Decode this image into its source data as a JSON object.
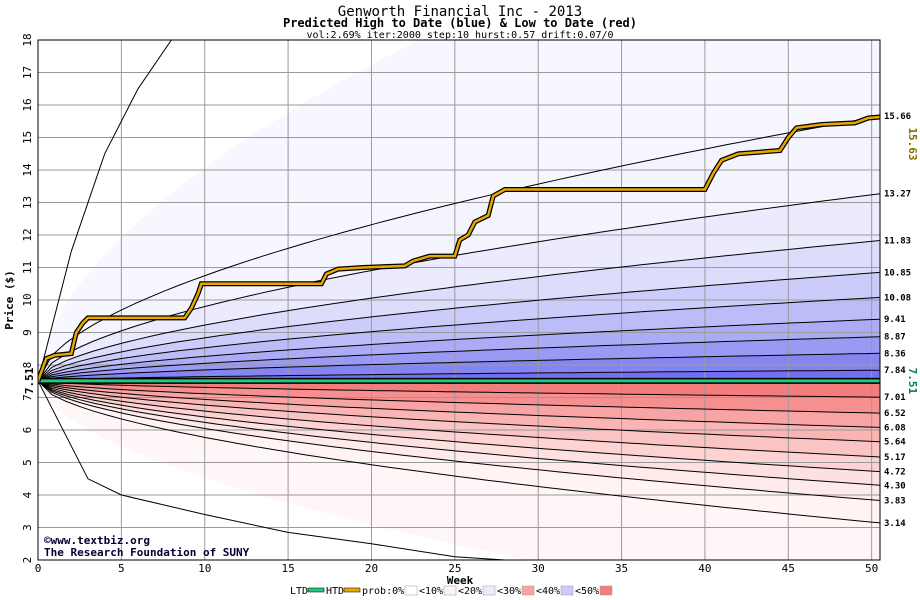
{
  "chart_data": {
    "type": "area",
    "title": "Genworth Financial Inc - 2013",
    "subtitle": "Predicted High to Date (blue) &  Low to Date (red)",
    "params": "vol:2.69% iter:2000 step:10 hurst:0.57 drift:0.07/0",
    "xlabel": "Week",
    "ylabel": "Price ($)",
    "xlim": [
      0,
      50.5
    ],
    "ylim": [
      2,
      18
    ],
    "xticks": [
      0,
      5,
      10,
      15,
      20,
      25,
      30,
      35,
      40,
      45,
      50
    ],
    "yticks": [
      2,
      3,
      4,
      5,
      6,
      7,
      8,
      9,
      10,
      11,
      12,
      13,
      14,
      15,
      16,
      17,
      18
    ],
    "start_price": 7.51,
    "start_label": "7.51",
    "ltd_label": "7.51",
    "htd_label": "15.63",
    "high_bands": [
      {
        "end": 7.84,
        "label": "7.84",
        "color": "#7070f0"
      },
      {
        "end": 8.36,
        "label": "8.36",
        "color": "#8585f2"
      },
      {
        "end": 8.87,
        "label": "8.87",
        "color": "#9a9af4"
      },
      {
        "end": 9.41,
        "label": "9.41",
        "color": "#acacf6"
      },
      {
        "end": 10.08,
        "label": "10.08",
        "color": "#bcbcf8"
      },
      {
        "end": 10.85,
        "label": "10.85",
        "color": "#ccccfa"
      },
      {
        "end": 11.83,
        "label": "11.83",
        "color": "#dcdcfb"
      },
      {
        "end": 13.27,
        "label": "13.27",
        "color": "#ebebfd"
      },
      {
        "end": 15.66,
        "label": "15.66",
        "color": "#f4f4fe"
      }
    ],
    "high_outer_end": 24,
    "low_bands": [
      {
        "end": 7.01,
        "label": "7.01",
        "color": "#f47c7c"
      },
      {
        "end": 6.52,
        "label": "6.52",
        "color": "#f69090"
      },
      {
        "end": 6.08,
        "label": "6.08",
        "color": "#f8a4a4"
      },
      {
        "end": 5.64,
        "label": "5.64",
        "color": "#fab4b4"
      },
      {
        "end": 5.17,
        "label": "5.17",
        "color": "#fbc4c4"
      },
      {
        "end": 4.72,
        "label": "4.72",
        "color": "#fcd2d2"
      },
      {
        "end": 4.3,
        "label": "4.30",
        "color": "#fde0e0"
      },
      {
        "end": 3.83,
        "label": "3.83",
        "color": "#feeaea"
      },
      {
        "end": 3.14,
        "label": "3.14",
        "color": "#fff3f3"
      }
    ],
    "low_outer": [
      [
        0,
        7.51
      ],
      [
        3,
        4.5
      ],
      [
        5,
        4.0
      ],
      [
        10,
        3.4
      ],
      [
        15,
        2.85
      ],
      [
        20,
        2.5
      ],
      [
        25,
        2.1
      ],
      [
        28,
        2.0
      ]
    ],
    "high_outer": [
      [
        0,
        7.51
      ],
      [
        2,
        11.5
      ],
      [
        4,
        14.5
      ],
      [
        6,
        16.5
      ],
      [
        8,
        18.0
      ]
    ],
    "htd_series": [
      [
        0,
        7.51
      ],
      [
        0.5,
        8.2
      ],
      [
        1,
        8.3
      ],
      [
        2,
        8.35
      ],
      [
        2.3,
        9.0
      ],
      [
        2.7,
        9.3
      ],
      [
        3,
        9.45
      ],
      [
        4,
        9.45
      ],
      [
        5,
        9.45
      ],
      [
        6,
        9.45
      ],
      [
        7,
        9.45
      ],
      [
        8,
        9.45
      ],
      [
        8.8,
        9.45
      ],
      [
        9.2,
        9.75
      ],
      [
        9.6,
        10.2
      ],
      [
        9.8,
        10.5
      ],
      [
        12,
        10.5
      ],
      [
        15,
        10.5
      ],
      [
        17,
        10.5
      ],
      [
        17.3,
        10.8
      ],
      [
        18,
        10.95
      ],
      [
        19.5,
        11.0
      ],
      [
        22,
        11.05
      ],
      [
        22.5,
        11.2
      ],
      [
        23.5,
        11.35
      ],
      [
        25,
        11.35
      ],
      [
        25.3,
        11.85
      ],
      [
        25.8,
        12.0
      ],
      [
        26.2,
        12.4
      ],
      [
        27,
        12.6
      ],
      [
        27.3,
        13.2
      ],
      [
        28,
        13.4
      ],
      [
        32,
        13.4
      ],
      [
        36,
        13.4
      ],
      [
        40,
        13.4
      ],
      [
        40.5,
        13.9
      ],
      [
        41,
        14.3
      ],
      [
        42,
        14.5
      ],
      [
        44.5,
        14.6
      ],
      [
        45,
        15.0
      ],
      [
        45.5,
        15.3
      ],
      [
        47,
        15.4
      ],
      [
        49,
        15.45
      ],
      [
        49.8,
        15.6
      ],
      [
        50.5,
        15.63
      ]
    ],
    "ltd_value": 7.51,
    "ltd_color": "#20c880",
    "htd_color": "#e8a800",
    "text_color_left": "#000000",
    "text_color_ltd": "#008050",
    "text_color_htd": "#8a6e00"
  },
  "credits": {
    "site": "©www.textbiz.org",
    "org": "The Research Foundation of SUNY"
  },
  "legend": {
    "ltd": "LTD",
    "htd": "HTD",
    "items": [
      {
        "label": "prob:0%",
        "color": "#ffffff"
      },
      {
        "label": "<10%",
        "color": "#fff3f3"
      },
      {
        "label": "<20%",
        "color": "#ebebfd"
      },
      {
        "label": "<30%",
        "color": "#f8a4a4"
      },
      {
        "label": "<40%",
        "color": "#ccccfa"
      },
      {
        "label": "<50%",
        "color": "#f47c7c"
      }
    ]
  }
}
